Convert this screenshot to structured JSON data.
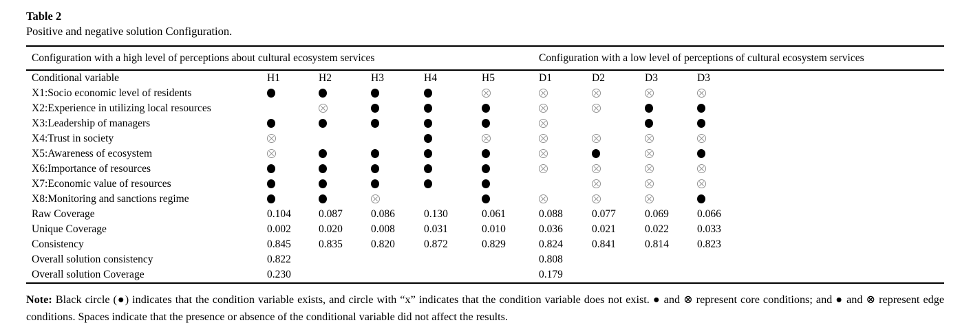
{
  "page": {
    "title": "Table 2",
    "subtitle": "Positive and negative solution Configuration."
  },
  "table": {
    "group_headers": [
      {
        "label": "Configuration with a high level of perceptions about cultural ecosystem services"
      },
      {
        "label": "Configuration with a low level of perceptions of cultural ecosystem services"
      }
    ],
    "header_row": {
      "label": "Conditional variable",
      "columns": [
        "H1",
        "H2",
        "H3",
        "H4",
        "H5",
        "D1",
        "D2",
        "D3",
        "D3"
      ]
    },
    "symbols": {
      "filled": "●",
      "crossed": "⊗"
    },
    "rows": [
      {
        "label": "X1:Socio economic level of residents",
        "cells": [
          "●",
          "●",
          "●",
          "●",
          "⊗",
          "⊗",
          "⊗",
          "⊗",
          "⊗"
        ]
      },
      {
        "label": "X2:Experience in utilizing local resources",
        "cells": [
          "",
          "⊗",
          "●",
          "●",
          "●",
          "⊗",
          "⊗",
          "●",
          "●"
        ]
      },
      {
        "label": "X3:Leadership of managers",
        "cells": [
          "●",
          "●",
          "●",
          "●",
          "●",
          "⊗",
          "",
          "●",
          "●"
        ]
      },
      {
        "label": "X4:Trust in society",
        "cells": [
          "⊗",
          "",
          "",
          "●",
          "⊗",
          "⊗",
          "⊗",
          "⊗",
          "⊗"
        ]
      },
      {
        "label": "X5:Awareness of ecosystem",
        "cells": [
          "⊗",
          "●",
          "●",
          "●",
          "●",
          "⊗",
          "●",
          "⊗",
          "●"
        ]
      },
      {
        "label": "X6:Importance of resources",
        "cells": [
          "●",
          "●",
          "●",
          "●",
          "●",
          "⊗",
          "⊗",
          "⊗",
          "⊗"
        ]
      },
      {
        "label": "X7:Economic value of resources",
        "cells": [
          "●",
          "●",
          "●",
          "●",
          "●",
          "",
          "⊗",
          "⊗",
          "⊗"
        ]
      },
      {
        "label": "X8:Monitoring and sanctions regime",
        "cells": [
          "●",
          "●",
          "⊗",
          "",
          "●",
          "⊗",
          "⊗",
          "⊗",
          "●"
        ]
      },
      {
        "label": "Raw Coverage",
        "cells": [
          "0.104",
          "0.087",
          "0.086",
          "0.130",
          "0.061",
          "0.088",
          "0.077",
          "0.069",
          "0.066"
        ]
      },
      {
        "label": "Unique Coverage",
        "cells": [
          "0.002",
          "0.020",
          "0.008",
          "0.031",
          "0.010",
          "0.036",
          "0.021",
          "0.022",
          "0.033"
        ]
      },
      {
        "label": "Consistency",
        "cells": [
          "0.845",
          "0.835",
          "0.820",
          "0.872",
          "0.829",
          "0.824",
          "0.841",
          "0.814",
          "0.823"
        ]
      },
      {
        "label": "Overall solution consistency",
        "cells": [
          "0.822",
          "",
          "",
          "",
          "",
          "0.808",
          "",
          "",
          ""
        ]
      },
      {
        "label": "Overall solution Coverage",
        "cells": [
          "0.230",
          "",
          "",
          "",
          "",
          "0.179",
          "",
          "",
          ""
        ]
      }
    ]
  },
  "note": {
    "label": "Note:",
    "text": "Black circle (●) indicates that the condition variable exists, and circle with “x” indicates that the condition variable does not exist. ● and ⊗ represent core conditions; and ● and ⊗ represent edge conditions. Spaces indicate that the presence or absence of the conditional variable did not affect the results."
  }
}
